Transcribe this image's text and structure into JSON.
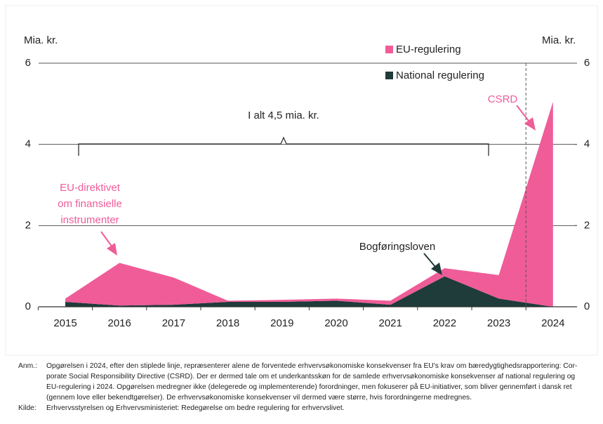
{
  "chart_data": {
    "type": "stacked-area",
    "y_label_left": "Mia. kr.",
    "y_label_right": "Mia. kr.",
    "x": [
      "2015",
      "2016",
      "2017",
      "2018",
      "2019",
      "2020",
      "2021",
      "2022",
      "2023",
      "2024"
    ],
    "series": [
      {
        "name": "EU-regulering",
        "color": "#ef5c98",
        "values": [
          0.08,
          1.05,
          0.67,
          0.03,
          0.05,
          0.05,
          0.1,
          0.2,
          0.58,
          5.05
        ]
      },
      {
        "name": "National regulering",
        "color": "#1f3b3a",
        "values": [
          0.12,
          0.03,
          0.05,
          0.12,
          0.12,
          0.15,
          0.05,
          0.75,
          0.2,
          0
        ]
      }
    ],
    "ylim": [
      0,
      6
    ],
    "yticks": [
      0,
      2,
      4,
      6
    ],
    "y2lim": [
      0,
      6
    ],
    "y2ticks": [
      0,
      2,
      4,
      6
    ],
    "grid": true,
    "annotations": {
      "total": "I alt 4,5 mia. kr.",
      "eu_directive": [
        "EU-direktivet",
        "om finansielle",
        "instrumenter"
      ],
      "bookkeeping": "Bogføringsloven",
      "csrd": "CSRD"
    }
  },
  "notes": {
    "anm_label": "Anm.:",
    "anm_lines": [
      "Opgørelsen i 2024, efter den stiplede linje, repræsenterer alene de forventede erhvervsøkonomiske konsekvenser fra EU's krav om bæredygtighedsrapportering: Cor-",
      "porate Social Responsibility Directive (CSRD). Der er dermed tale om et underkantsskøn for de samlede erhvervsøkonomiske konsekvenser af national regulering og",
      "EU-regulering i 2024. Opgørelsen medregner ikke (delegerede og implementerende) forordninger, men fokuserer på EU-initiativer, som bliver gennemført i dansk ret",
      "(gennem love eller bekendtgørelser). De erhvervsøkonomiske konsekvenser vil dermed være større, hvis forordningerne medregnes."
    ],
    "source_label": "Kilde:",
    "source": "Erhvervsstyrelsen og Erhvervsministeriet: Redegørelse om bedre regulering for erhvervslivet."
  }
}
